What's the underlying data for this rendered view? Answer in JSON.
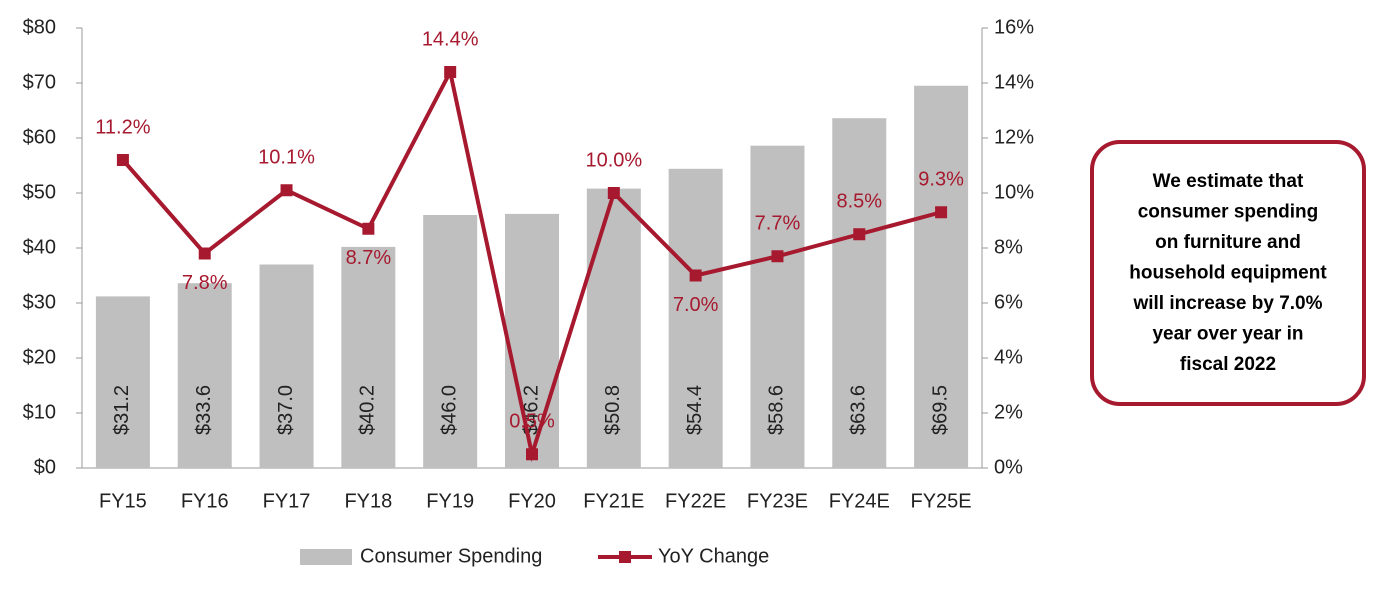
{
  "chart_data": {
    "type": "bar_line",
    "categories": [
      "FY15",
      "FY16",
      "FY17",
      "FY18",
      "FY19",
      "FY20",
      "FY21E",
      "FY22E",
      "FY23E",
      "FY24E",
      "FY25E"
    ],
    "series": [
      {
        "name": "Consumer Spending",
        "type": "bar",
        "color": "#bfbfbf",
        "values": [
          31.2,
          33.6,
          37.0,
          40.2,
          46.0,
          46.2,
          50.8,
          54.4,
          58.6,
          63.6,
          69.5
        ],
        "value_labels": [
          "$31.2",
          "$33.6",
          "$37.0",
          "$40.2",
          "$46.0",
          "$46.2",
          "$50.8",
          "$54.4",
          "$58.6",
          "$63.6",
          "$69.5"
        ]
      },
      {
        "name": "YoY Change",
        "type": "line",
        "axis": "y2",
        "color": "#a6192e",
        "values": [
          11.2,
          7.8,
          10.1,
          8.7,
          14.4,
          0.5,
          10.0,
          7.0,
          7.7,
          8.5,
          9.3
        ],
        "value_labels": [
          "11.2%",
          "7.8%",
          "10.1%",
          "8.7%",
          "14.4%",
          "0.5%",
          "10.0%",
          "7.0%",
          "7.7%",
          "8.5%",
          "9.3%"
        ]
      }
    ],
    "ylim": [
      0,
      80
    ],
    "yticks": [
      {
        "value": 0,
        "label": "$0"
      },
      {
        "value": 10,
        "label": "$10"
      },
      {
        "value": 20,
        "label": "$20"
      },
      {
        "value": 30,
        "label": "$30"
      },
      {
        "value": 40,
        "label": "$40"
      },
      {
        "value": 50,
        "label": "$50"
      },
      {
        "value": 60,
        "label": "$60"
      },
      {
        "value": 70,
        "label": "$70"
      },
      {
        "value": 80,
        "label": "$80"
      }
    ],
    "y2lim": [
      0,
      16
    ],
    "y2ticks": [
      {
        "value": 0,
        "label": "0%"
      },
      {
        "value": 2,
        "label": "2%"
      },
      {
        "value": 4,
        "label": "4%"
      },
      {
        "value": 6,
        "label": "6%"
      },
      {
        "value": 8,
        "label": "8%"
      },
      {
        "value": 10,
        "label": "10%"
      },
      {
        "value": 12,
        "label": "12%"
      },
      {
        "value": 14,
        "label": "14%"
      },
      {
        "value": 16,
        "label": "16%"
      }
    ],
    "annotation": [
      "We estimate that",
      "consumer spending",
      "on furniture and",
      "household equipment",
      "will increase by 7.0%",
      "year over year in",
      "fiscal 2022"
    ]
  }
}
